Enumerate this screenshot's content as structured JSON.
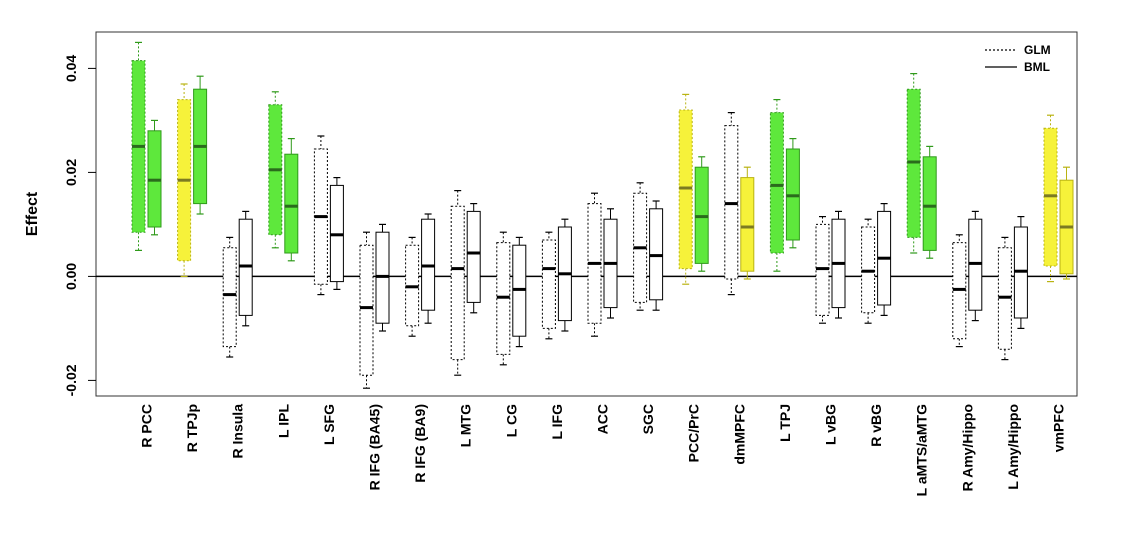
{
  "chart_data": {
    "type": "boxplot",
    "ylabel": "Effect",
    "ylim": [
      -0.023,
      0.047
    ],
    "yticks": [
      -0.02,
      0.0,
      0.02,
      0.04
    ],
    "ytick_labels": [
      "-0.02",
      "0.00",
      "0.02",
      "0.04"
    ],
    "zero_line": true,
    "grid": false,
    "legend": {
      "position": "top-right",
      "entries": [
        {
          "name": "GLM",
          "style": "dotted"
        },
        {
          "name": "BML",
          "style": "solid"
        }
      ]
    },
    "colors": {
      "green": "#5ee83c",
      "yellow": "#f6f23a",
      "white": "#ffffff"
    },
    "categories": [
      "R PCC",
      "R TPJp",
      "R Insula",
      "L IPL",
      "L SFG",
      "R IFG (BA45)",
      "R IFG (BA9)",
      "L MTG",
      "L CG",
      "L IFG",
      "ACC",
      "SGC",
      "PCC/PrC",
      "dmMPFC",
      "L TPJ",
      "L vBG",
      "R vBG",
      "L aMTS/aMTG",
      "R Amy/Hippo",
      "L Amy/Hippo",
      "vmPFC"
    ],
    "series": [
      {
        "name": "GLM",
        "boxes": [
          {
            "lo": 0.005,
            "q1": 0.0085,
            "med": 0.025,
            "q3": 0.0415,
            "hi": 0.045,
            "color": "green"
          },
          {
            "lo": 0.0,
            "q1": 0.003,
            "med": 0.0185,
            "q3": 0.034,
            "hi": 0.037,
            "color": "yellow"
          },
          {
            "lo": -0.0155,
            "q1": -0.0135,
            "med": -0.0035,
            "q3": 0.0055,
            "hi": 0.0075,
            "color": "white"
          },
          {
            "lo": 0.0055,
            "q1": 0.008,
            "med": 0.0205,
            "q3": 0.033,
            "hi": 0.0355,
            "color": "green"
          },
          {
            "lo": -0.0035,
            "q1": -0.0015,
            "med": 0.0115,
            "q3": 0.0245,
            "hi": 0.027,
            "color": "white"
          },
          {
            "lo": -0.0215,
            "q1": -0.019,
            "med": -0.006,
            "q3": 0.006,
            "hi": 0.0085,
            "color": "white"
          },
          {
            "lo": -0.0115,
            "q1": -0.0095,
            "med": -0.002,
            "q3": 0.006,
            "hi": 0.0075,
            "color": "white"
          },
          {
            "lo": -0.019,
            "q1": -0.016,
            "med": 0.0015,
            "q3": 0.0135,
            "hi": 0.0165,
            "color": "white"
          },
          {
            "lo": -0.017,
            "q1": -0.015,
            "med": -0.004,
            "q3": 0.0065,
            "hi": 0.0085,
            "color": "white"
          },
          {
            "lo": -0.012,
            "q1": -0.01,
            "med": 0.0015,
            "q3": 0.007,
            "hi": 0.0085,
            "color": "white"
          },
          {
            "lo": -0.0115,
            "q1": -0.009,
            "med": 0.0025,
            "q3": 0.014,
            "hi": 0.016,
            "color": "white"
          },
          {
            "lo": -0.0065,
            "q1": -0.005,
            "med": 0.0055,
            "q3": 0.016,
            "hi": 0.018,
            "color": "white"
          },
          {
            "lo": -0.0015,
            "q1": 0.0015,
            "med": 0.017,
            "q3": 0.032,
            "hi": 0.035,
            "color": "yellow"
          },
          {
            "lo": -0.0035,
            "q1": -0.0005,
            "med": 0.014,
            "q3": 0.029,
            "hi": 0.0315,
            "color": "white"
          },
          {
            "lo": 0.001,
            "q1": 0.0045,
            "med": 0.0175,
            "q3": 0.0315,
            "hi": 0.034,
            "color": "green"
          },
          {
            "lo": -0.009,
            "q1": -0.0075,
            "med": 0.0015,
            "q3": 0.01,
            "hi": 0.0115,
            "color": "white"
          },
          {
            "lo": -0.009,
            "q1": -0.007,
            "med": 0.001,
            "q3": 0.0095,
            "hi": 0.011,
            "color": "white"
          },
          {
            "lo": 0.0045,
            "q1": 0.0075,
            "med": 0.022,
            "q3": 0.036,
            "hi": 0.039,
            "color": "green"
          },
          {
            "lo": -0.0135,
            "q1": -0.012,
            "med": -0.0025,
            "q3": 0.0065,
            "hi": 0.008,
            "color": "white"
          },
          {
            "lo": -0.016,
            "q1": -0.014,
            "med": -0.004,
            "q3": 0.0055,
            "hi": 0.0075,
            "color": "white"
          },
          {
            "lo": -0.001,
            "q1": 0.002,
            "med": 0.0155,
            "q3": 0.0285,
            "hi": 0.031,
            "color": "yellow"
          }
        ]
      },
      {
        "name": "BML",
        "boxes": [
          {
            "lo": 0.008,
            "q1": 0.0095,
            "med": 0.0185,
            "q3": 0.028,
            "hi": 0.03,
            "color": "green"
          },
          {
            "lo": 0.012,
            "q1": 0.014,
            "med": 0.025,
            "q3": 0.036,
            "hi": 0.0385,
            "color": "green"
          },
          {
            "lo": -0.0095,
            "q1": -0.0075,
            "med": 0.002,
            "q3": 0.011,
            "hi": 0.0125,
            "color": "white"
          },
          {
            "lo": 0.003,
            "q1": 0.0045,
            "med": 0.0135,
            "q3": 0.0235,
            "hi": 0.0265,
            "color": "green"
          },
          {
            "lo": -0.0025,
            "q1": -0.001,
            "med": 0.008,
            "q3": 0.0175,
            "hi": 0.019,
            "color": "white"
          },
          {
            "lo": -0.0105,
            "q1": -0.009,
            "med": 0.0,
            "q3": 0.0085,
            "hi": 0.01,
            "color": "white"
          },
          {
            "lo": -0.009,
            "q1": -0.0065,
            "med": 0.002,
            "q3": 0.011,
            "hi": 0.012,
            "color": "white"
          },
          {
            "lo": -0.007,
            "q1": -0.005,
            "med": 0.0045,
            "q3": 0.0125,
            "hi": 0.014,
            "color": "white"
          },
          {
            "lo": -0.0135,
            "q1": -0.0115,
            "med": -0.0025,
            "q3": 0.006,
            "hi": 0.0075,
            "color": "white"
          },
          {
            "lo": -0.0105,
            "q1": -0.0085,
            "med": 0.0005,
            "q3": 0.0095,
            "hi": 0.011,
            "color": "white"
          },
          {
            "lo": -0.008,
            "q1": -0.006,
            "med": 0.0025,
            "q3": 0.011,
            "hi": 0.013,
            "color": "white"
          },
          {
            "lo": -0.0065,
            "q1": -0.0045,
            "med": 0.004,
            "q3": 0.013,
            "hi": 0.0145,
            "color": "white"
          },
          {
            "lo": 0.001,
            "q1": 0.0025,
            "med": 0.0115,
            "q3": 0.021,
            "hi": 0.023,
            "color": "green"
          },
          {
            "lo": -0.0005,
            "q1": 0.001,
            "med": 0.0095,
            "q3": 0.019,
            "hi": 0.021,
            "color": "yellow"
          },
          {
            "lo": 0.0055,
            "q1": 0.007,
            "med": 0.0155,
            "q3": 0.0245,
            "hi": 0.0265,
            "color": "green"
          },
          {
            "lo": -0.008,
            "q1": -0.006,
            "med": 0.0025,
            "q3": 0.011,
            "hi": 0.0125,
            "color": "white"
          },
          {
            "lo": -0.0075,
            "q1": -0.0055,
            "med": 0.0035,
            "q3": 0.0125,
            "hi": 0.014,
            "color": "white"
          },
          {
            "lo": 0.0035,
            "q1": 0.005,
            "med": 0.0135,
            "q3": 0.023,
            "hi": 0.025,
            "color": "green"
          },
          {
            "lo": -0.0085,
            "q1": -0.0065,
            "med": 0.0025,
            "q3": 0.011,
            "hi": 0.0125,
            "color": "white"
          },
          {
            "lo": -0.01,
            "q1": -0.008,
            "med": 0.001,
            "q3": 0.0095,
            "hi": 0.0115,
            "color": "white"
          },
          {
            "lo": -0.0005,
            "q1": 0.0005,
            "med": 0.0095,
            "q3": 0.0185,
            "hi": 0.021,
            "color": "yellow"
          }
        ]
      }
    ]
  }
}
